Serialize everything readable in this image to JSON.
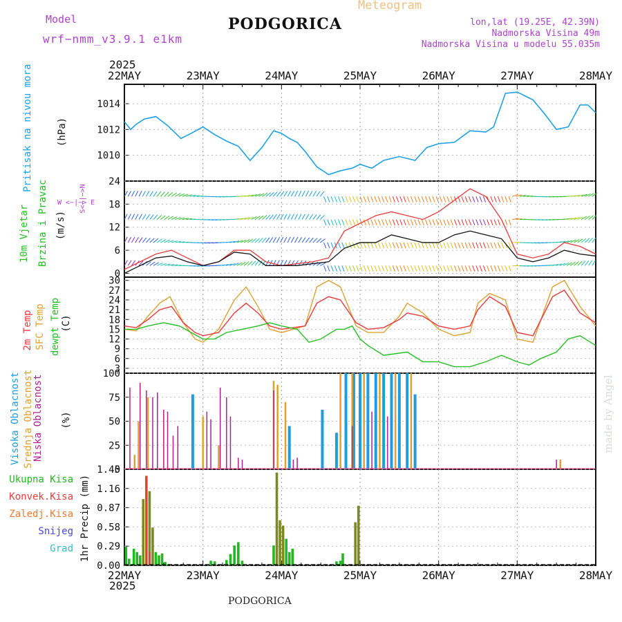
{
  "header": {
    "model_label": "Model",
    "model_name": "wrf−nmm_v3.9.1 e1km",
    "title": "PODGORICA",
    "meteogram_label": "Meteogram",
    "coords": "lon,lat (19.25E, 42.39N)",
    "elevation": "Nadmorska Visina 49m",
    "model_elevation": "Nadmorska Visina u modelu 55.035m",
    "year_top": "2025",
    "year_bottom": "2025",
    "footer_title": "PODGORICA",
    "watermark": "made by Angel"
  },
  "colors": {
    "pressure": "#1ea0e6",
    "temp2m": "#e8383c",
    "sfc_temp": "#e0a030",
    "dewpt": "#22c022",
    "high_cloud": "#1e9ee0",
    "mid_cloud": "#e0a030",
    "low_cloud": "#b0208c",
    "precip_total": "#22b822",
    "precip_conv": "#e83c3c",
    "wind_speed": "#111111",
    "wind_gust": "#e83c3c"
  },
  "axis": {
    "dates": [
      "22MAY",
      "23MAY",
      "24MAY",
      "25MAY",
      "26MAY",
      "27MAY",
      "28MAY"
    ]
  },
  "panels": {
    "pressure": {
      "ylabel_1": "Pritisak na nivou mora",
      "ylabel_2": "(hPa)"
    },
    "wind": {
      "ylabel_1": "10m Vjetar",
      "ylabel_2": "Brzina i Pravac",
      "ylabel_3": "(m/s)",
      "compass": "W <−|−> E",
      "compass_v": "S<−|−>N"
    },
    "temp": {
      "ylabel_1": "2m Temp",
      "ylabel_2": "SFC Temp",
      "ylabel_3": "dewpt Temp",
      "ylabel_4": "(C)"
    },
    "cloud": {
      "ylabel_1": "Visoka Oblacnost",
      "ylabel_2": "Srednja Oblacnost",
      "ylabel_3": "Niska Oblacnost",
      "ylabel_4": "(%)"
    },
    "precip": {
      "ylabel": "1hr Precip (mm)",
      "legend": [
        "Ukupna Kisa",
        "Konvek.Kisa",
        "Zaledj.Kisa",
        "Snijeg",
        "Grad"
      ]
    }
  },
  "chart_data": [
    {
      "type": "line",
      "title": "",
      "ylabel": "Pritisak na nivou mora (hPa)",
      "ylim": [
        1008,
        1015.5
      ],
      "yticks": [
        1010,
        1012,
        1014
      ],
      "x_unit": "days since 22MAY 00 UTC",
      "series": [
        {
          "name": "Pritisak",
          "x": [
            0,
            0.08,
            0.15,
            0.25,
            0.4,
            0.55,
            0.72,
            0.85,
            1.0,
            1.15,
            1.3,
            1.45,
            1.6,
            1.75,
            1.9,
            2.0,
            2.1,
            2.2,
            2.3,
            2.45,
            2.6,
            2.75,
            2.9,
            3.0,
            3.15,
            3.3,
            3.5,
            3.7,
            3.85,
            4.0,
            4.2,
            4.4,
            4.6,
            4.7,
            4.85,
            5.0,
            5.2,
            5.35,
            5.5,
            5.65,
            5.8,
            5.9,
            6.0
          ],
          "values": [
            1012.6,
            1012.0,
            1012.4,
            1012.8,
            1013.0,
            1012.3,
            1011.3,
            1011.7,
            1012.2,
            1011.6,
            1011.1,
            1010.7,
            1009.6,
            1010.6,
            1011.9,
            1011.7,
            1011.3,
            1011.0,
            1010.3,
            1009.1,
            1008.5,
            1008.8,
            1009.0,
            1009.3,
            1009.0,
            1009.6,
            1009.9,
            1009.6,
            1010.6,
            1010.9,
            1011.0,
            1011.9,
            1011.8,
            1012.2,
            1014.8,
            1014.9,
            1014.3,
            1013.2,
            1012.0,
            1012.2,
            1013.9,
            1013.9,
            1013.3
          ]
        }
      ]
    },
    {
      "type": "line",
      "title": "",
      "ylabel": "10m Vjetar Brzina i Pravac (m/s)",
      "ylim": [
        -1,
        24
      ],
      "yticks": [
        0,
        6,
        12,
        18,
        24
      ],
      "series": [
        {
          "name": "speed",
          "x": [
            0,
            0.2,
            0.4,
            0.6,
            0.8,
            1.0,
            1.2,
            1.4,
            1.6,
            1.8,
            2.0,
            2.2,
            2.4,
            2.6,
            2.8,
            3.0,
            3.2,
            3.4,
            3.6,
            3.8,
            4.0,
            4.2,
            4.4,
            4.6,
            4.8,
            5.0,
            5.2,
            5.4,
            5.6,
            5.8,
            6.0
          ],
          "values": [
            0,
            2,
            4,
            4.5,
            3,
            2,
            3,
            5.5,
            5,
            2,
            2,
            2,
            2.5,
            3,
            6.5,
            8,
            8,
            10,
            9,
            8,
            8,
            10,
            11,
            10,
            9,
            4,
            3,
            4,
            6,
            5,
            4.5
          ]
        },
        {
          "name": "gust",
          "x": [
            0,
            0.2,
            0.4,
            0.6,
            0.8,
            1.0,
            1.2,
            1.4,
            1.6,
            1.8,
            2.0,
            2.2,
            2.4,
            2.6,
            2.8,
            3.0,
            3.2,
            3.4,
            3.6,
            3.8,
            4.0,
            4.2,
            4.4,
            4.6,
            4.8,
            5.0,
            5.2,
            5.4,
            5.6,
            5.8,
            6.0
          ],
          "values": [
            1,
            3,
            5,
            6,
            4,
            2,
            3,
            6,
            6,
            3,
            2,
            2.5,
            3,
            4,
            11,
            13,
            15,
            16,
            15,
            14,
            16,
            19,
            22,
            20,
            14,
            5,
            4,
            5,
            8,
            7,
            5
          ]
        }
      ]
    },
    {
      "type": "line",
      "title": "",
      "ylabel": "Temp (C)",
      "ylim": [
        1.5,
        31
      ],
      "yticks": [
        3,
        6,
        9,
        12,
        15,
        18,
        21,
        24,
        27,
        30
      ],
      "series": [
        {
          "name": "2m Temp",
          "x": [
            0,
            0.15,
            0.3,
            0.45,
            0.6,
            0.75,
            0.9,
            1.0,
            1.2,
            1.4,
            1.55,
            1.7,
            1.85,
            2.0,
            2.3,
            2.45,
            2.6,
            2.75,
            2.95,
            3.1,
            3.3,
            3.5,
            3.6,
            3.8,
            4.0,
            4.2,
            4.4,
            4.5,
            4.65,
            4.85,
            5.0,
            5.2,
            5.45,
            5.6,
            5.8,
            6.0
          ],
          "values": [
            16,
            15.5,
            18,
            21,
            22,
            17,
            14,
            13,
            14,
            20,
            23,
            20,
            16,
            15,
            16,
            23,
            25,
            24,
            17,
            15,
            15.5,
            18,
            20,
            19,
            16,
            15,
            16,
            21,
            25,
            22,
            14,
            13,
            25,
            27,
            20,
            17
          ]
        },
        {
          "name": "SFC Temp",
          "x": [
            0,
            0.15,
            0.3,
            0.45,
            0.58,
            0.75,
            0.9,
            1.0,
            1.2,
            1.4,
            1.55,
            1.7,
            1.85,
            2.0,
            2.3,
            2.45,
            2.6,
            2.75,
            2.95,
            3.1,
            3.3,
            3.5,
            3.6,
            3.8,
            4.0,
            4.2,
            4.4,
            4.5,
            4.65,
            4.85,
            5.0,
            5.2,
            5.45,
            5.6,
            5.8,
            6.0
          ],
          "values": [
            15,
            14.5,
            19,
            23,
            25,
            17,
            12,
            11,
            15,
            24,
            28,
            22,
            15,
            14,
            16,
            28,
            30,
            28,
            16,
            14,
            14,
            19,
            23,
            20,
            15,
            13,
            14,
            23,
            26,
            24,
            12,
            11,
            28,
            30,
            22,
            16
          ]
        },
        {
          "name": "dewpt Temp",
          "x": [
            0,
            0.15,
            0.3,
            0.5,
            0.7,
            0.85,
            1.0,
            1.15,
            1.3,
            1.5,
            1.7,
            1.85,
            2.0,
            2.2,
            2.35,
            2.5,
            2.7,
            2.8,
            2.9,
            3.0,
            3.1,
            3.3,
            3.6,
            3.8,
            4.0,
            4.2,
            4.4,
            4.6,
            4.8,
            5.0,
            5.15,
            5.3,
            5.5,
            5.65,
            5.8,
            6.0
          ],
          "values": [
            15,
            15,
            16,
            17,
            16,
            14,
            12,
            12,
            14,
            15,
            16,
            17,
            16,
            15,
            11,
            12,
            15,
            15,
            16,
            12,
            10,
            7,
            8,
            5,
            5,
            3.5,
            3.5,
            5,
            7,
            5,
            4,
            6,
            8,
            12,
            13,
            10
          ]
        }
      ]
    },
    {
      "type": "bar",
      "title": "",
      "ylabel": "Oblacnost (%)",
      "ylim": [
        0,
        100
      ],
      "yticks": [
        0,
        25,
        50,
        75,
        100
      ],
      "series": [
        {
          "name": "Visoka",
          "x": [
            0.87,
            2.1,
            2.52,
            2.7,
            2.82,
            2.92,
            3.0,
            3.1,
            3.2,
            3.3,
            3.4,
            3.5,
            3.6,
            3.7
          ],
          "values": [
            78,
            45,
            62,
            38,
            100,
            100,
            100,
            100,
            100,
            100,
            100,
            100,
            100,
            78
          ]
        },
        {
          "name": "Srednja",
          "x": [
            0.13,
            0.18,
            0.3,
            1.0,
            1.2,
            1.9,
            1.95,
            2.05,
            2.75,
            2.9,
            3.05,
            3.25,
            3.45,
            3.65,
            5.55
          ],
          "values": [
            15,
            50,
            75,
            55,
            25,
            92,
            88,
            70,
            100,
            100,
            100,
            100,
            100,
            100,
            10
          ]
        },
        {
          "name": "Niska",
          "x": [
            0.07,
            0.2,
            0.28,
            0.36,
            0.42,
            0.5,
            0.55,
            0.62,
            0.68,
            1.05,
            1.1,
            1.22,
            1.3,
            1.35,
            1.45,
            1.5,
            1.9,
            2.15,
            2.2,
            2.9,
            3.15,
            3.35,
            5.5
          ],
          "values": [
            85,
            90,
            82,
            75,
            80,
            62,
            60,
            35,
            45,
            60,
            52,
            85,
            75,
            55,
            12,
            10,
            82,
            10,
            12,
            45,
            60,
            55,
            10
          ]
        }
      ]
    },
    {
      "type": "bar",
      "title": "",
      "ylabel": "1hr Precip (mm)",
      "ylim": [
        0,
        1.45
      ],
      "yticks": [
        0,
        0.29,
        0.58,
        0.87,
        1.16,
        1.45
      ],
      "series": [
        {
          "name": "Ukupna Kisa",
          "x": [
            0.02,
            0.06,
            0.12,
            0.16,
            0.2,
            0.24,
            0.28,
            0.32,
            0.36,
            0.4,
            0.44,
            0.48,
            0.52,
            0.56,
            1.1,
            1.15,
            1.3,
            1.35,
            1.4,
            1.45,
            1.5,
            1.9,
            1.94,
            1.98,
            2.02,
            2.06,
            2.1,
            2.14,
            2.7,
            2.75,
            2.78,
            2.94,
            2.98
          ],
          "values": [
            0.28,
            0.1,
            0.25,
            0.2,
            0.15,
            1.0,
            1.35,
            1.12,
            0.57,
            0.2,
            0.15,
            0.18,
            0.05,
            0.02,
            0.07,
            0.06,
            0.08,
            0.17,
            0.3,
            0.35,
            0.07,
            0.3,
            1.4,
            0.68,
            0.6,
            0.4,
            0.2,
            0.25,
            0.06,
            0.07,
            0.18,
            0.65,
            0.9
          ]
        },
        {
          "name": "Konvek.Kisa",
          "x": [
            0.28,
            0.32
          ],
          "values": [
            1.35,
            0.2
          ]
        }
      ]
    }
  ]
}
